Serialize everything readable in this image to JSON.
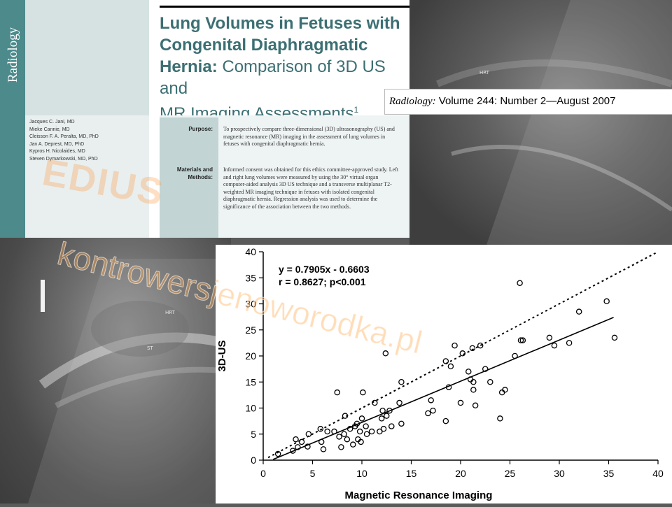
{
  "journal": {
    "vertical_name": "Radiology",
    "meta_italic": "Radiology:",
    "meta_rest": " Volume 244: Number 2—August 2007"
  },
  "paper": {
    "title_bold_1": "Lung Volumes in Fetuses with",
    "title_bold_2": "Congenital Diaphragmatic",
    "title_bold_3": "Hernia:",
    "title_rest_3": " Comparison of 3D US and",
    "title_rest_4": "MR Imaging Assessments",
    "title_sup": "1",
    "authors": [
      "Jacques C. Jani, MD",
      "Mieke Cannie, MD",
      "Cleisson F. A. Peralta, MD, PhD",
      "Jan A. Deprest, MD, PhD",
      "Kypros H. Nicolaides, MD",
      "Steven Dymarkowski, MD, PhD"
    ],
    "purpose_label": "Purpose:",
    "purpose_text": "To prospectively compare three-dimensional (3D) ultrasonography (US) and magnetic resonance (MR) imaging in the assessment of lung volumes in fetuses with congenital diaphragmatic hernia.",
    "methods_label_1": "Materials and",
    "methods_label_2": "Methods:",
    "methods_text": "Informed consent was obtained for this ethics committee-approved study. Left and right lung volumes were measured by using the 30° virtual organ computer-aided analysis 3D US technique and a transverse multiplanar T2-weighted MR imaging technique in fetuses with isolated congenital diaphragmatic hernia. Regression analysis was used to determine the significance of the association between the two methods."
  },
  "ultrasound": {
    "label_hrt_top": "HRT",
    "label_hrt_bottom": "HRT",
    "label_st": "ST"
  },
  "watermark": {
    "line1": "EDIUS",
    "line2": "kontrowersjenoworodka.pl"
  },
  "chart_data": {
    "type": "scatter",
    "xlabel": "Magnetic Resonance Imaging",
    "ylabel": "3D-US",
    "xlim": [
      0,
      40
    ],
    "ylim": [
      0,
      40
    ],
    "xticks": [
      0,
      5,
      10,
      15,
      20,
      25,
      30,
      35,
      40
    ],
    "yticks": [
      0,
      5,
      10,
      15,
      20,
      25,
      30,
      35,
      40
    ],
    "equation": "y = 0.7905x - 0.6603",
    "stats": "r = 0.8627; p<0.001",
    "regression": {
      "slope": 0.7905,
      "intercept": -0.6603,
      "x_from": 1.0,
      "x_to": 35.5
    },
    "identity_line": {
      "x_from": 0.5,
      "x_to": 40
    },
    "grid": false,
    "points": [
      [
        1.5,
        1.2
      ],
      [
        3,
        1.8
      ],
      [
        3.3,
        4
      ],
      [
        3.5,
        2.5
      ],
      [
        3.9,
        3.5
      ],
      [
        4.5,
        2.6
      ],
      [
        4.6,
        5
      ],
      [
        5.8,
        6
      ],
      [
        5.9,
        3.5
      ],
      [
        6.1,
        2.1
      ],
      [
        6.5,
        5.5
      ],
      [
        7.2,
        5.5
      ],
      [
        7.5,
        13
      ],
      [
        7.7,
        4.5
      ],
      [
        7.9,
        2.5
      ],
      [
        8.2,
        5
      ],
      [
        8.3,
        8.5
      ],
      [
        8.5,
        4
      ],
      [
        8.8,
        6
      ],
      [
        9.1,
        3
      ],
      [
        9.3,
        6.5
      ],
      [
        9.5,
        7
      ],
      [
        9.6,
        4
      ],
      [
        9.8,
        5.5
      ],
      [
        9.9,
        3.5
      ],
      [
        10,
        8
      ],
      [
        10.1,
        13
      ],
      [
        10.4,
        6.5
      ],
      [
        10.5,
        5
      ],
      [
        11,
        5.5
      ],
      [
        11.3,
        11
      ],
      [
        11.8,
        5.5
      ],
      [
        12,
        8
      ],
      [
        12.1,
        9.5
      ],
      [
        12.2,
        6
      ],
      [
        12.4,
        20.5
      ],
      [
        12.5,
        8.5
      ],
      [
        12.8,
        9.5
      ],
      [
        13,
        6.5
      ],
      [
        13.8,
        11
      ],
      [
        14,
        7
      ],
      [
        14,
        15
      ],
      [
        16.7,
        9
      ],
      [
        17,
        11.5
      ],
      [
        17.2,
        9.5
      ],
      [
        18.5,
        7.5
      ],
      [
        18.5,
        19
      ],
      [
        18.8,
        14
      ],
      [
        19,
        18
      ],
      [
        19.4,
        22
      ],
      [
        20,
        11
      ],
      [
        20.2,
        20.5
      ],
      [
        20.8,
        17
      ],
      [
        21,
        15.5
      ],
      [
        21.2,
        21.5
      ],
      [
        21.3,
        15
      ],
      [
        21.3,
        13.5
      ],
      [
        21.5,
        10.5
      ],
      [
        22,
        22
      ],
      [
        22.5,
        17.5
      ],
      [
        23,
        15
      ],
      [
        24,
        8
      ],
      [
        24.2,
        13
      ],
      [
        24.5,
        13.5
      ],
      [
        25.5,
        20
      ],
      [
        26,
        34
      ],
      [
        26.1,
        23
      ],
      [
        26.3,
        23
      ],
      [
        29,
        23.5
      ],
      [
        29.5,
        22
      ],
      [
        31,
        22.5
      ],
      [
        32,
        28.5
      ],
      [
        34.8,
        30.5
      ],
      [
        35.6,
        23.5
      ]
    ]
  }
}
